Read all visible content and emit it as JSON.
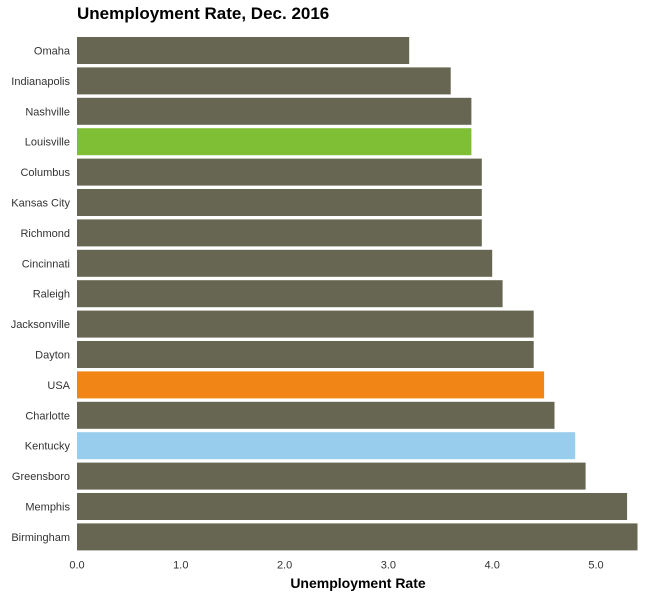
{
  "chart_data": {
    "type": "bar",
    "orientation": "horizontal",
    "title": "Unemployment Rate, Dec. 2016",
    "xlabel": "Unemployment Rate",
    "ylabel": "",
    "xlim": [
      0,
      5.4
    ],
    "x_ticks": [
      "0.0",
      "1.0",
      "2.0",
      "3.0",
      "4.0",
      "5.0"
    ],
    "grid": false,
    "legend": "none",
    "categories": [
      "Omaha",
      "Indianapolis",
      "Nashville",
      "Louisville",
      "Columbus",
      "Kansas City",
      "Richmond",
      "Cincinnati",
      "Raleigh",
      "Jacksonville",
      "Dayton",
      "USA",
      "Charlotte",
      "Kentucky",
      "Greensboro",
      "Memphis",
      "Birmingham"
    ],
    "values": [
      3.2,
      3.6,
      3.8,
      3.8,
      3.9,
      3.9,
      3.9,
      4.0,
      4.1,
      4.4,
      4.4,
      4.5,
      4.6,
      4.8,
      4.9,
      5.3,
      5.4
    ],
    "colors": {
      "default": "#666653",
      "Louisville": "#7fbf35",
      "USA": "#f18515",
      "Kentucky": "#98cdee"
    }
  }
}
